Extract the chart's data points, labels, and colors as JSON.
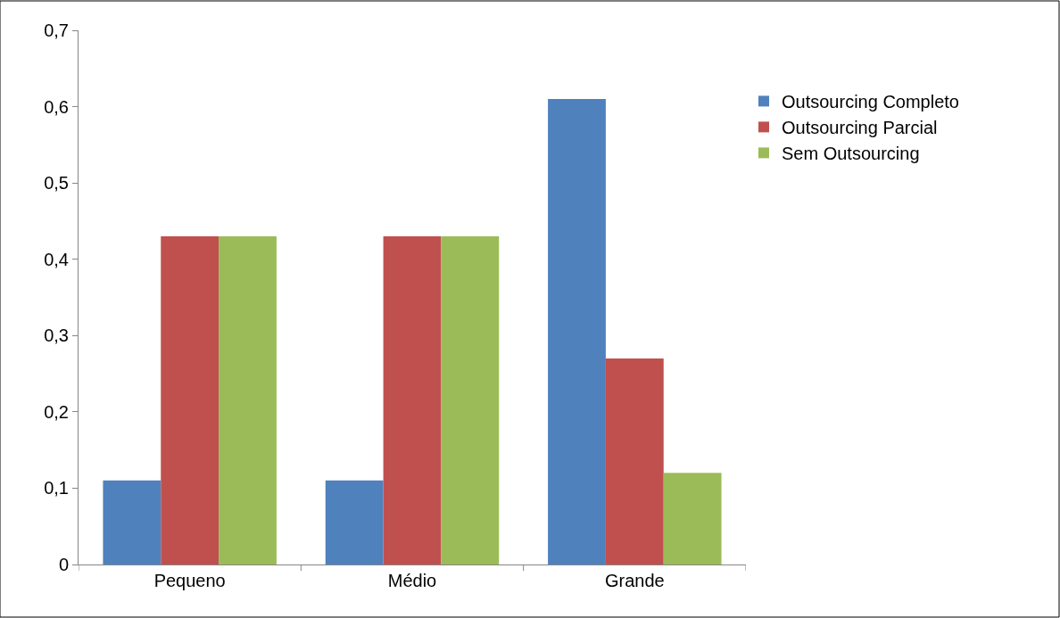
{
  "chart_data": {
    "type": "bar",
    "categories": [
      "Pequeno",
      "Médio",
      "Grande"
    ],
    "series": [
      {
        "name": "Outsourcing Completo",
        "color": "#4f81bd",
        "values": [
          0.11,
          0.11,
          0.61
        ]
      },
      {
        "name": "Outsourcing Parcial",
        "color": "#c0504d",
        "values": [
          0.43,
          0.43,
          0.27
        ]
      },
      {
        "name": "Sem Outsourcing",
        "color": "#9bbb59",
        "values": [
          0.43,
          0.43,
          0.12
        ]
      }
    ],
    "ylim": [
      0,
      0.7
    ],
    "yticks": [
      {
        "value": 0,
        "label": "0"
      },
      {
        "value": 0.1,
        "label": "0,1"
      },
      {
        "value": 0.2,
        "label": "0,2"
      },
      {
        "value": 0.3,
        "label": "0,3"
      },
      {
        "value": 0.4,
        "label": "0,4"
      },
      {
        "value": 0.5,
        "label": "0,5"
      },
      {
        "value": 0.6,
        "label": "0,6"
      },
      {
        "value": 0.7,
        "label": "0,7"
      }
    ],
    "legend": "right"
  }
}
